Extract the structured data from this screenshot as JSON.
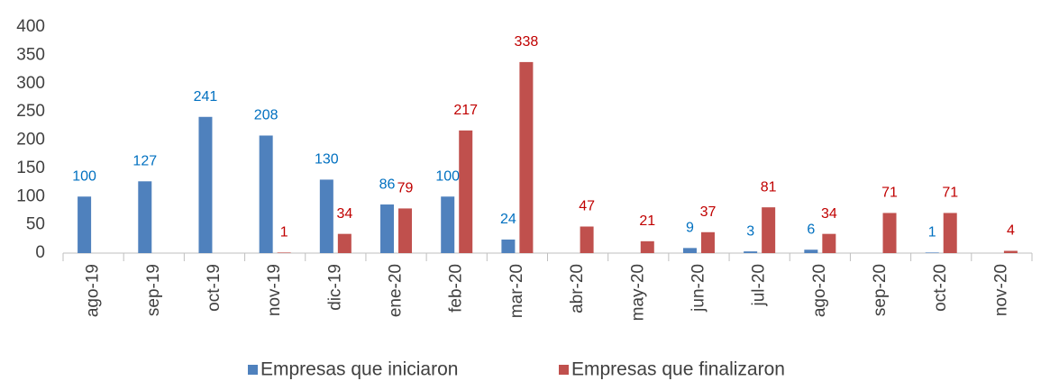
{
  "chart_data": {
    "type": "bar",
    "categories": [
      "ago-19",
      "sep-19",
      "oct-19",
      "nov-19",
      "dic-19",
      "ene-20",
      "feb-20",
      "mar-20",
      "abr-20",
      "may-20",
      "jun-20",
      "jul-20",
      "ago-20",
      "sep-20",
      "oct-20",
      "nov-20"
    ],
    "series": [
      {
        "name": "Empresas que iniciaron",
        "color": "#4f81bd",
        "label_color": "#0070c0",
        "values": [
          100,
          127,
          241,
          208,
          130,
          86,
          100,
          24,
          null,
          null,
          9,
          3,
          6,
          null,
          1,
          null
        ]
      },
      {
        "name": "Empresas que finalizaron",
        "color": "#c0504d",
        "label_color": "#c00000",
        "values": [
          null,
          null,
          null,
          1,
          34,
          79,
          217,
          338,
          47,
          21,
          37,
          81,
          34,
          71,
          71,
          4
        ]
      }
    ],
    "ylim": [
      0,
      400
    ],
    "yticks": [
      0,
      50,
      100,
      150,
      200,
      250,
      300,
      350,
      400
    ],
    "grid": false,
    "legend": "bottom"
  }
}
